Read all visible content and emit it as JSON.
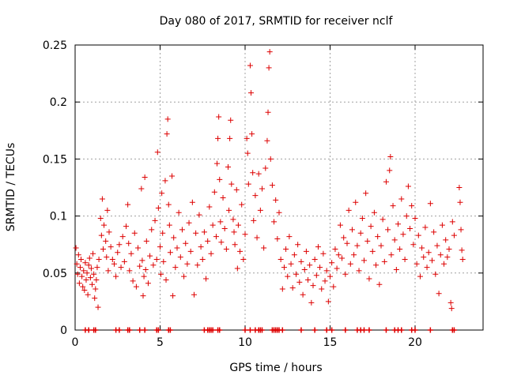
{
  "chart_data": {
    "type": "scatter",
    "title": "Day 080 of 2017, SRMTID for receiver nclf",
    "xlabel": "GPS time / hours",
    "ylabel": "SRMTID / TECUs",
    "xlim": [
      0,
      24
    ],
    "ylim": [
      0,
      0.25
    ],
    "x_ticks": [
      0,
      5,
      10,
      15,
      20
    ],
    "y_ticks": [
      0,
      0.05,
      0.1,
      0.15,
      0.2,
      0.25
    ],
    "x_tick_labels": [
      "0",
      "5",
      "10",
      "15",
      "20"
    ],
    "y_tick_labels": [
      "0",
      "0.05",
      "0.1",
      "0.15",
      "0.2",
      "0.25"
    ],
    "grid": true,
    "marker": "+",
    "marker_color": "#dd0000",
    "series": [
      {
        "values": [
          [
            0.05,
            0.072
          ],
          [
            0.1,
            0.058
          ],
          [
            0.15,
            0.049
          ],
          [
            0.2,
            0.066
          ],
          [
            0.25,
            0.041
          ],
          [
            0.3,
            0.055
          ],
          [
            0.35,
            0.062
          ],
          [
            0.4,
            0.047
          ],
          [
            0.45,
            0.038
          ],
          [
            0.5,
            0.052
          ],
          [
            0.55,
            0.035
          ],
          [
            0.6,
            0.059
          ],
          [
            0.65,
            0.044
          ],
          [
            0.7,
            0.05
          ],
          [
            0.75,
            0.031
          ],
          [
            0.8,
            0.057
          ],
          [
            0.85,
            0.063
          ],
          [
            0.9,
            0.046
          ],
          [
            0.95,
            0.054
          ],
          [
            1.0,
            0.04
          ],
          [
            1.05,
            0.067
          ],
          [
            1.1,
            0.049
          ],
          [
            1.15,
            0.028
          ],
          [
            1.2,
            0.036
          ],
          [
            1.25,
            0.044
          ],
          [
            1.3,
            0.055
          ],
          [
            1.35,
            0.02
          ],
          [
            1.4,
            0.062
          ],
          [
            1.5,
            0.098
          ],
          [
            1.55,
            0.083
          ],
          [
            1.6,
            0.115
          ],
          [
            1.65,
            0.071
          ],
          [
            1.7,
            0.092
          ],
          [
            1.8,
            0.078
          ],
          [
            1.85,
            0.064
          ],
          [
            1.9,
            0.105
          ],
          [
            1.95,
            0.052
          ],
          [
            2.0,
            0.086
          ],
          [
            2.1,
            0.073
          ],
          [
            2.2,
            0.062
          ],
          [
            2.3,
            0.058
          ],
          [
            2.4,
            0.047
          ],
          [
            2.5,
            0.068
          ],
          [
            2.6,
            0.075
          ],
          [
            2.7,
            0.055
          ],
          [
            2.8,
            0.082
          ],
          [
            2.9,
            0.06
          ],
          [
            3.0,
            0.091
          ],
          [
            3.1,
            0.11
          ],
          [
            3.15,
            0.076
          ],
          [
            3.2,
            0.052
          ],
          [
            3.3,
            0.067
          ],
          [
            3.4,
            0.043
          ],
          [
            3.5,
            0.085
          ],
          [
            3.6,
            0.038
          ],
          [
            3.7,
            0.072
          ],
          [
            3.8,
            0.056
          ],
          [
            3.9,
            0.124
          ],
          [
            3.95,
            0.061
          ],
          [
            4.0,
            0.03
          ],
          [
            4.05,
            0.047
          ],
          [
            4.1,
            0.134
          ],
          [
            4.15,
            0.053
          ],
          [
            4.2,
            0.078
          ],
          [
            4.3,
            0.041
          ],
          [
            4.4,
            0.065
          ],
          [
            4.5,
            0.088
          ],
          [
            4.6,
            0.057
          ],
          [
            4.7,
            0.096
          ],
          [
            4.8,
            0.062
          ],
          [
            4.85,
            0.156
          ],
          [
            4.9,
            0.107
          ],
          [
            5.0,
            0.073
          ],
          [
            5.05,
            0.049
          ],
          [
            5.1,
            0.12
          ],
          [
            5.15,
            0.085
          ],
          [
            5.2,
            0.06
          ],
          [
            5.3,
            0.131
          ],
          [
            5.35,
            0.044
          ],
          [
            5.4,
            0.172
          ],
          [
            5.45,
            0.185
          ],
          [
            5.5,
            0.11
          ],
          [
            5.55,
            0.092
          ],
          [
            5.6,
            0.068
          ],
          [
            5.7,
            0.135
          ],
          [
            5.75,
            0.03
          ],
          [
            5.8,
            0.081
          ],
          [
            5.9,
            0.055
          ],
          [
            6.0,
            0.072
          ],
          [
            6.1,
            0.103
          ],
          [
            6.2,
            0.064
          ],
          [
            6.3,
            0.088
          ],
          [
            6.4,
            0.047
          ],
          [
            6.5,
            0.076
          ],
          [
            6.6,
            0.058
          ],
          [
            6.7,
            0.094
          ],
          [
            6.8,
            0.069
          ],
          [
            6.9,
            0.112
          ],
          [
            7.0,
            0.031
          ],
          [
            7.1,
            0.085
          ],
          [
            7.2,
            0.057
          ],
          [
            7.3,
            0.101
          ],
          [
            7.4,
            0.073
          ],
          [
            7.5,
            0.062
          ],
          [
            7.6,
            0.086
          ],
          [
            7.7,
            0.045
          ],
          [
            7.8,
            0.078
          ],
          [
            7.9,
            0.108
          ],
          [
            8.0,
            0.067
          ],
          [
            8.1,
            0.092
          ],
          [
            8.2,
            0.121
          ],
          [
            8.3,
            0.082
          ],
          [
            8.35,
            0.146
          ],
          [
            8.4,
            0.168
          ],
          [
            8.45,
            0.187
          ],
          [
            8.5,
            0.132
          ],
          [
            8.55,
            0.095
          ],
          [
            8.6,
            0.077
          ],
          [
            8.7,
            0.116
          ],
          [
            8.8,
            0.089
          ],
          [
            8.9,
            0.071
          ],
          [
            9.0,
            0.143
          ],
          [
            9.05,
            0.105
          ],
          [
            9.1,
            0.168
          ],
          [
            9.15,
            0.184
          ],
          [
            9.2,
            0.128
          ],
          [
            9.3,
            0.097
          ],
          [
            9.35,
            0.086
          ],
          [
            9.4,
            0.075
          ],
          [
            9.5,
            0.123
          ],
          [
            9.55,
            0.054
          ],
          [
            9.6,
            0.092
          ],
          [
            9.7,
            0.069
          ],
          [
            9.8,
            0.11
          ],
          [
            9.9,
            0.062
          ],
          [
            10.0,
            0.084
          ],
          [
            10.1,
            0.168
          ],
          [
            10.15,
            0.155
          ],
          [
            10.2,
            0.128
          ],
          [
            10.3,
            0.232
          ],
          [
            10.35,
            0.208
          ],
          [
            10.4,
            0.172
          ],
          [
            10.45,
            0.138
          ],
          [
            10.5,
            0.096
          ],
          [
            10.6,
            0.118
          ],
          [
            10.7,
            0.081
          ],
          [
            10.8,
            0.137
          ],
          [
            10.9,
            0.105
          ],
          [
            11.0,
            0.124
          ],
          [
            11.1,
            0.072
          ],
          [
            11.2,
            0.142
          ],
          [
            11.3,
            0.166
          ],
          [
            11.35,
            0.191
          ],
          [
            11.4,
            0.23
          ],
          [
            11.45,
            0.244
          ],
          [
            11.5,
            0.15
          ],
          [
            11.6,
            0.127
          ],
          [
            11.7,
            0.095
          ],
          [
            11.8,
            0.114
          ],
          [
            11.9,
            0.08
          ],
          [
            12.0,
            0.103
          ],
          [
            12.1,
            0.062
          ],
          [
            12.2,
            0.036
          ],
          [
            12.3,
            0.055
          ],
          [
            12.4,
            0.071
          ],
          [
            12.5,
            0.047
          ],
          [
            12.6,
            0.082
          ],
          [
            12.7,
            0.058
          ],
          [
            12.8,
            0.037
          ],
          [
            12.9,
            0.066
          ],
          [
            13.0,
            0.049
          ],
          [
            13.1,
            0.075
          ],
          [
            13.2,
            0.042
          ],
          [
            13.3,
            0.06
          ],
          [
            13.4,
            0.031
          ],
          [
            13.5,
            0.053
          ],
          [
            13.6,
            0.069
          ],
          [
            13.7,
            0.044
          ],
          [
            13.8,
            0.057
          ],
          [
            13.9,
            0.024
          ],
          [
            14.0,
            0.039
          ],
          [
            14.1,
            0.062
          ],
          [
            14.2,
            0.048
          ],
          [
            14.3,
            0.073
          ],
          [
            14.4,
            0.055
          ],
          [
            14.5,
            0.036
          ],
          [
            14.6,
            0.067
          ],
          [
            14.7,
            0.043
          ],
          [
            14.8,
            0.052
          ],
          [
            14.9,
            0.025
          ],
          [
            15.0,
            0.047
          ],
          [
            15.1,
            0.059
          ],
          [
            15.2,
            0.038
          ],
          [
            15.3,
            0.071
          ],
          [
            15.4,
            0.054
          ],
          [
            15.5,
            0.066
          ],
          [
            15.6,
            0.092
          ],
          [
            15.7,
            0.063
          ],
          [
            15.8,
            0.081
          ],
          [
            15.9,
            0.049
          ],
          [
            16.0,
            0.076
          ],
          [
            16.1,
            0.105
          ],
          [
            16.2,
            0.058
          ],
          [
            16.3,
            0.088
          ],
          [
            16.4,
            0.066
          ],
          [
            16.5,
            0.112
          ],
          [
            16.6,
            0.074
          ],
          [
            16.7,
            0.052
          ],
          [
            16.8,
            0.085
          ],
          [
            16.9,
            0.098
          ],
          [
            17.0,
            0.061
          ],
          [
            17.1,
            0.12
          ],
          [
            17.2,
            0.078
          ],
          [
            17.3,
            0.045
          ],
          [
            17.4,
            0.091
          ],
          [
            17.5,
            0.069
          ],
          [
            17.6,
            0.103
          ],
          [
            17.7,
            0.057
          ],
          [
            17.8,
            0.082
          ],
          [
            17.9,
            0.04
          ],
          [
            18.0,
            0.074
          ],
          [
            18.1,
            0.097
          ],
          [
            18.2,
            0.06
          ],
          [
            18.3,
            0.13
          ],
          [
            18.4,
            0.088
          ],
          [
            18.5,
            0.14
          ],
          [
            18.55,
            0.152
          ],
          [
            18.6,
            0.066
          ],
          [
            18.7,
            0.109
          ],
          [
            18.8,
            0.079
          ],
          [
            18.9,
            0.053
          ],
          [
            19.0,
            0.093
          ],
          [
            19.1,
            0.071
          ],
          [
            19.2,
            0.115
          ],
          [
            19.3,
            0.084
          ],
          [
            19.4,
            0.062
          ],
          [
            19.5,
            0.1
          ],
          [
            19.6,
            0.126
          ],
          [
            19.7,
            0.089
          ],
          [
            19.8,
            0.109
          ],
          [
            19.9,
            0.075
          ],
          [
            20.0,
            0.098
          ],
          [
            20.1,
            0.058
          ],
          [
            20.2,
            0.083
          ],
          [
            20.3,
            0.047
          ],
          [
            20.4,
            0.072
          ],
          [
            20.5,
            0.064
          ],
          [
            20.6,
            0.09
          ],
          [
            20.7,
            0.055
          ],
          [
            20.8,
            0.068
          ],
          [
            20.9,
            0.111
          ],
          [
            21.0,
            0.061
          ],
          [
            21.1,
            0.086
          ],
          [
            21.2,
            0.049
          ],
          [
            21.3,
            0.074
          ],
          [
            21.4,
            0.032
          ],
          [
            21.5,
            0.066
          ],
          [
            21.6,
            0.092
          ],
          [
            21.7,
            0.058
          ],
          [
            21.8,
            0.079
          ],
          [
            21.9,
            0.064
          ],
          [
            22.0,
            0.071
          ],
          [
            22.1,
            0.024
          ],
          [
            22.15,
            0.019
          ],
          [
            22.2,
            0.095
          ],
          [
            22.3,
            0.083
          ],
          [
            22.6,
            0.125
          ],
          [
            22.65,
            0.112
          ],
          [
            22.7,
            0.088
          ],
          [
            22.75,
            0.07
          ],
          [
            22.8,
            0.062
          ]
        ]
      }
    ],
    "baseline_x": [
      0.6,
      0.8,
      1.1,
      1.2,
      2.4,
      2.6,
      3.1,
      3.2,
      3.8,
      4.1,
      4.8,
      4.9,
      5.5,
      5.6,
      7.6,
      7.8,
      7.9,
      8.0,
      8.1,
      8.4,
      8.5,
      10.0,
      10.3,
      10.6,
      10.8,
      10.9,
      11.0,
      11.6,
      11.7,
      11.8,
      11.9,
      12.0,
      12.2,
      13.3,
      14.1,
      14.8,
      15.1,
      15.9,
      16.6,
      16.8,
      17.0,
      17.3,
      18.3,
      18.8,
      19.0,
      19.2,
      19.8,
      20.0,
      20.9,
      22.2,
      22.3
    ]
  }
}
